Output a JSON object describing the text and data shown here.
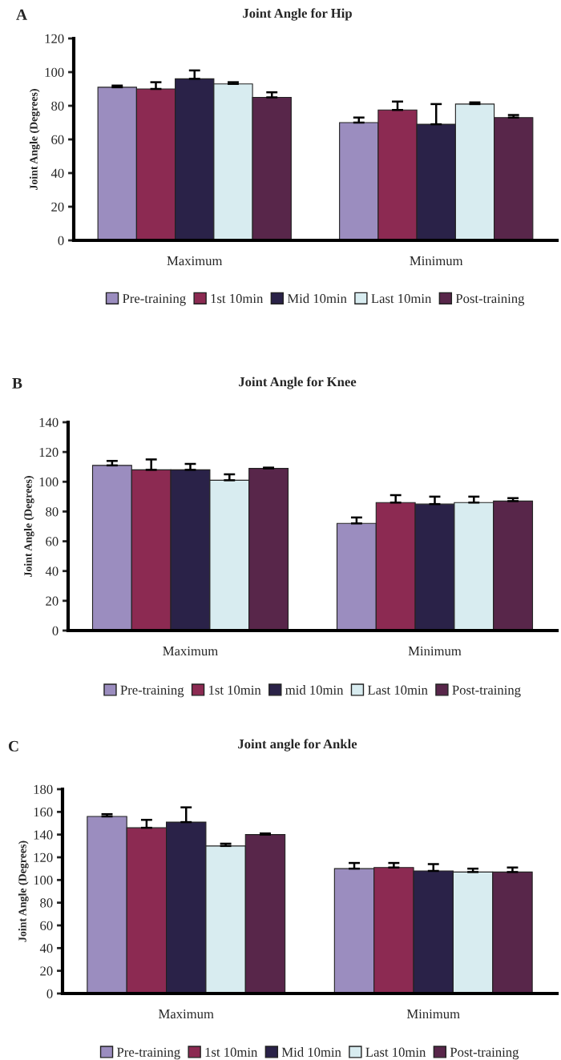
{
  "chart_data": [
    {
      "type": "bar",
      "title": "Joint Angle for Hip",
      "ylabel": "Joint Angle (Degrees)",
      "annotations": [
        "A"
      ],
      "categories": [
        "Maximum",
        "Minimum"
      ],
      "ylim": [
        0,
        120
      ],
      "yticks": [
        0,
        20,
        40,
        60,
        80,
        100,
        120
      ],
      "legend": "bottom",
      "grid": false,
      "series": [
        {
          "name": "Pre-training",
          "color": "#9b8dbf",
          "values": [
            91,
            70
          ],
          "errors": [
            [
              91,
              92
            ],
            [
              70,
              73
            ]
          ]
        },
        {
          "name": "1st 10min",
          "color": "#8c2a52",
          "values": [
            90,
            77.5
          ],
          "errors": [
            [
              90,
              94
            ],
            [
              77.5,
              82.5
            ]
          ]
        },
        {
          "name": "Mid 10min",
          "color": "#2a2248",
          "values": [
            96,
            69
          ],
          "errors": [
            [
              96,
              101
            ],
            [
              69,
              81
            ]
          ]
        },
        {
          "name": "Last 10min",
          "color": "#d8ecf0",
          "values": [
            93,
            81
          ],
          "errors": [
            [
              93,
              94
            ],
            [
              81,
              82
            ]
          ]
        },
        {
          "name": "Post-training",
          "color": "#58264a",
          "values": [
            85,
            73
          ],
          "errors": [
            [
              85,
              88
            ],
            [
              73,
              74.5
            ]
          ]
        }
      ]
    },
    {
      "type": "bar",
      "title": "Joint Angle for Knee",
      "ylabel": "Joint Angle (Degrees)",
      "annotations": [
        "B"
      ],
      "categories": [
        "Maximum",
        "Minimum"
      ],
      "ylim": [
        0,
        140
      ],
      "yticks": [
        0,
        20,
        40,
        60,
        80,
        100,
        120,
        140
      ],
      "legend": "bottom",
      "grid": false,
      "series": [
        {
          "name": "Pre-training",
          "color": "#9b8dbf",
          "values": [
            111,
            72
          ],
          "errors": [
            [
              111,
              114
            ],
            [
              72,
              76
            ]
          ]
        },
        {
          "name": "1st 10min",
          "color": "#8c2a52",
          "values": [
            108,
            86
          ],
          "errors": [
            [
              108,
              115
            ],
            [
              86,
              91
            ]
          ]
        },
        {
          "name": "mid 10min",
          "color": "#2a2248",
          "values": [
            108,
            85
          ],
          "errors": [
            [
              108,
              112
            ],
            [
              85,
              90
            ]
          ]
        },
        {
          "name": "Last 10min",
          "color": "#d8ecf0",
          "values": [
            101,
            86
          ],
          "errors": [
            [
              101,
              105
            ],
            [
              86,
              90
            ]
          ]
        },
        {
          "name": "Post-training",
          "color": "#58264a",
          "values": [
            109,
            87
          ],
          "errors": [
            [
              109,
              109.5
            ],
            [
              87,
              89
            ]
          ]
        }
      ]
    },
    {
      "type": "bar",
      "title": "Joint angle for Ankle",
      "ylabel": "Joint Angle (Degrees)",
      "annotations": [
        "C"
      ],
      "categories": [
        "Maximum",
        "Minimum"
      ],
      "ylim": [
        0,
        180
      ],
      "yticks": [
        0,
        20,
        40,
        60,
        80,
        100,
        120,
        140,
        160,
        180
      ],
      "legend": "bottom",
      "grid": false,
      "series": [
        {
          "name": "Pre-training",
          "color": "#9b8dbf",
          "values": [
            156,
            110
          ],
          "errors": [
            [
              156,
              158
            ],
            [
              110,
              115
            ]
          ]
        },
        {
          "name": "1st 10min",
          "color": "#8c2a52",
          "values": [
            146,
            111
          ],
          "errors": [
            [
              146,
              153
            ],
            [
              111,
              115
            ]
          ]
        },
        {
          "name": "Mid 10min",
          "color": "#2a2248",
          "values": [
            151,
            108
          ],
          "errors": [
            [
              151,
              164
            ],
            [
              108,
              114
            ]
          ]
        },
        {
          "name": "Last 10min",
          "color": "#d8ecf0",
          "values": [
            130,
            107
          ],
          "errors": [
            [
              130,
              132
            ],
            [
              107,
              110
            ]
          ]
        },
        {
          "name": "Post-training",
          "color": "#58264a",
          "values": [
            140,
            107
          ],
          "errors": [
            [
              140,
              141
            ],
            [
              107,
              111
            ]
          ]
        }
      ]
    }
  ]
}
